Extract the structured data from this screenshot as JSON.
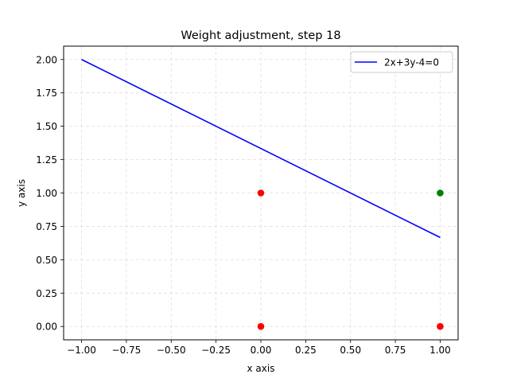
{
  "chart_data": {
    "type": "scatter",
    "title": "Weight adjustment, step 18",
    "xlabel": "x axis",
    "ylabel": "y axis",
    "xlim": [
      -1.1,
      1.1
    ],
    "ylim": [
      -0.1,
      2.1
    ],
    "x_ticks": [
      -1.0,
      -0.75,
      -0.5,
      -0.25,
      0.0,
      0.25,
      0.5,
      0.75,
      1.0
    ],
    "y_ticks": [
      0.0,
      0.25,
      0.5,
      0.75,
      1.0,
      1.25,
      1.5,
      1.75,
      2.0
    ],
    "x_tick_labels": [
      "−1.00",
      "−0.75",
      "−0.50",
      "−0.25",
      "0.00",
      "0.25",
      "0.50",
      "0.75",
      "1.00"
    ],
    "y_tick_labels": [
      "0.00",
      "0.25",
      "0.50",
      "0.75",
      "1.00",
      "1.25",
      "1.50",
      "1.75",
      "2.00"
    ],
    "grid": true,
    "legend_position": "top-right",
    "series": [
      {
        "name": "2x+3y-4=0",
        "kind": "line",
        "color": "#0000ff",
        "x": [
          -1.0,
          1.0
        ],
        "y": [
          2.0,
          0.6667
        ]
      }
    ],
    "points": [
      {
        "x": 0,
        "y": 0,
        "color": "#ff0000"
      },
      {
        "x": 0,
        "y": 1,
        "color": "#ff0000"
      },
      {
        "x": 1,
        "y": 0,
        "color": "#ff0000"
      },
      {
        "x": 1,
        "y": 1,
        "color": "#008000"
      }
    ]
  }
}
